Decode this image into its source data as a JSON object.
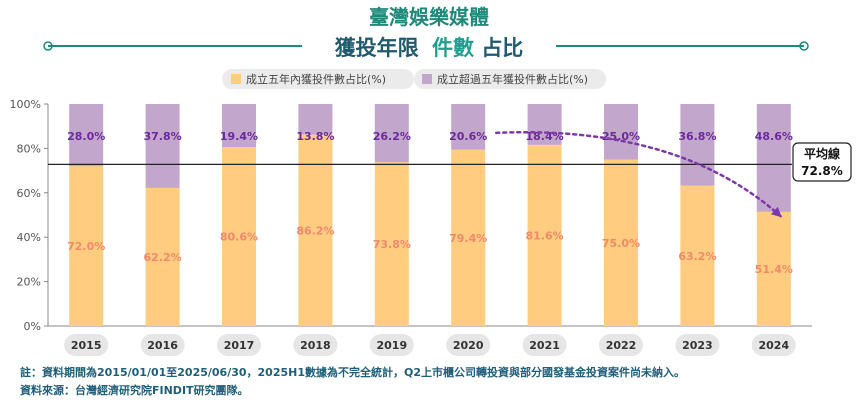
{
  "header": {
    "title_line1": "臺灣娛樂媒體",
    "title_line2_main": "獲投年限",
    "title_line2_accent": "件數",
    "title_line2_tail": "占比"
  },
  "chart_data": {
    "type": "bar",
    "stacked": true,
    "categories": [
      "2015",
      "2016",
      "2017",
      "2018",
      "2019",
      "2020",
      "2021",
      "2022",
      "2023",
      "2024"
    ],
    "series": [
      {
        "name": "成立五年內獲投件數占比(%)",
        "color": "#ffcc80",
        "values": [
          72.0,
          62.2,
          80.6,
          86.2,
          73.8,
          79.4,
          81.6,
          75.0,
          63.2,
          51.4
        ],
        "labels": [
          "72.0%",
          "62.2%",
          "80.6%",
          "86.2%",
          "73.8%",
          "79.4%",
          "81.6%",
          "75.0%",
          "63.2%",
          "51.4%"
        ]
      },
      {
        "name": "成立超過五年獲投件數占比(%)",
        "color": "#c3a6cc",
        "values": [
          28.0,
          37.8,
          19.4,
          13.8,
          26.2,
          20.6,
          18.4,
          25.0,
          36.8,
          48.6
        ],
        "labels": [
          "28.0%",
          "37.8%",
          "19.4%",
          "13.8%",
          "26.2%",
          "20.6%",
          "18.4%",
          "25.0%",
          "36.8%",
          "48.6%"
        ]
      }
    ],
    "ylim": [
      0,
      100
    ],
    "yticks": [
      "0%",
      "20%",
      "40%",
      "60%",
      "80%",
      "100%"
    ],
    "ytick_values": [
      0,
      20,
      40,
      60,
      80,
      100
    ],
    "reference_line": {
      "value": 72.8,
      "label_title": "平均線",
      "label_value": "72.8%"
    },
    "trend_arrow": {
      "from_category": "2020",
      "from_value": 87,
      "to_category": "2024",
      "to_value": 49
    },
    "legend_position": "top",
    "grid": false
  },
  "notes": {
    "line1": "註：資料期間為2015/01/01至2025/06/30，2025H1數據為不完全統計，Q2上市櫃公司轉投資與部分國發基金投資案件尚未納入。",
    "line2": "資料來源：台灣經濟研究院FINDIT研究團隊。"
  },
  "colors": {
    "teal": "#1f8a7a",
    "dark_teal": "#1f5a6e",
    "orange_bar": "#ffcc80",
    "purple_bar": "#c3a6cc",
    "orange_label": "#f08a6b",
    "purple_label": "#6a2a9c",
    "arrow": "#7b3aa8"
  }
}
